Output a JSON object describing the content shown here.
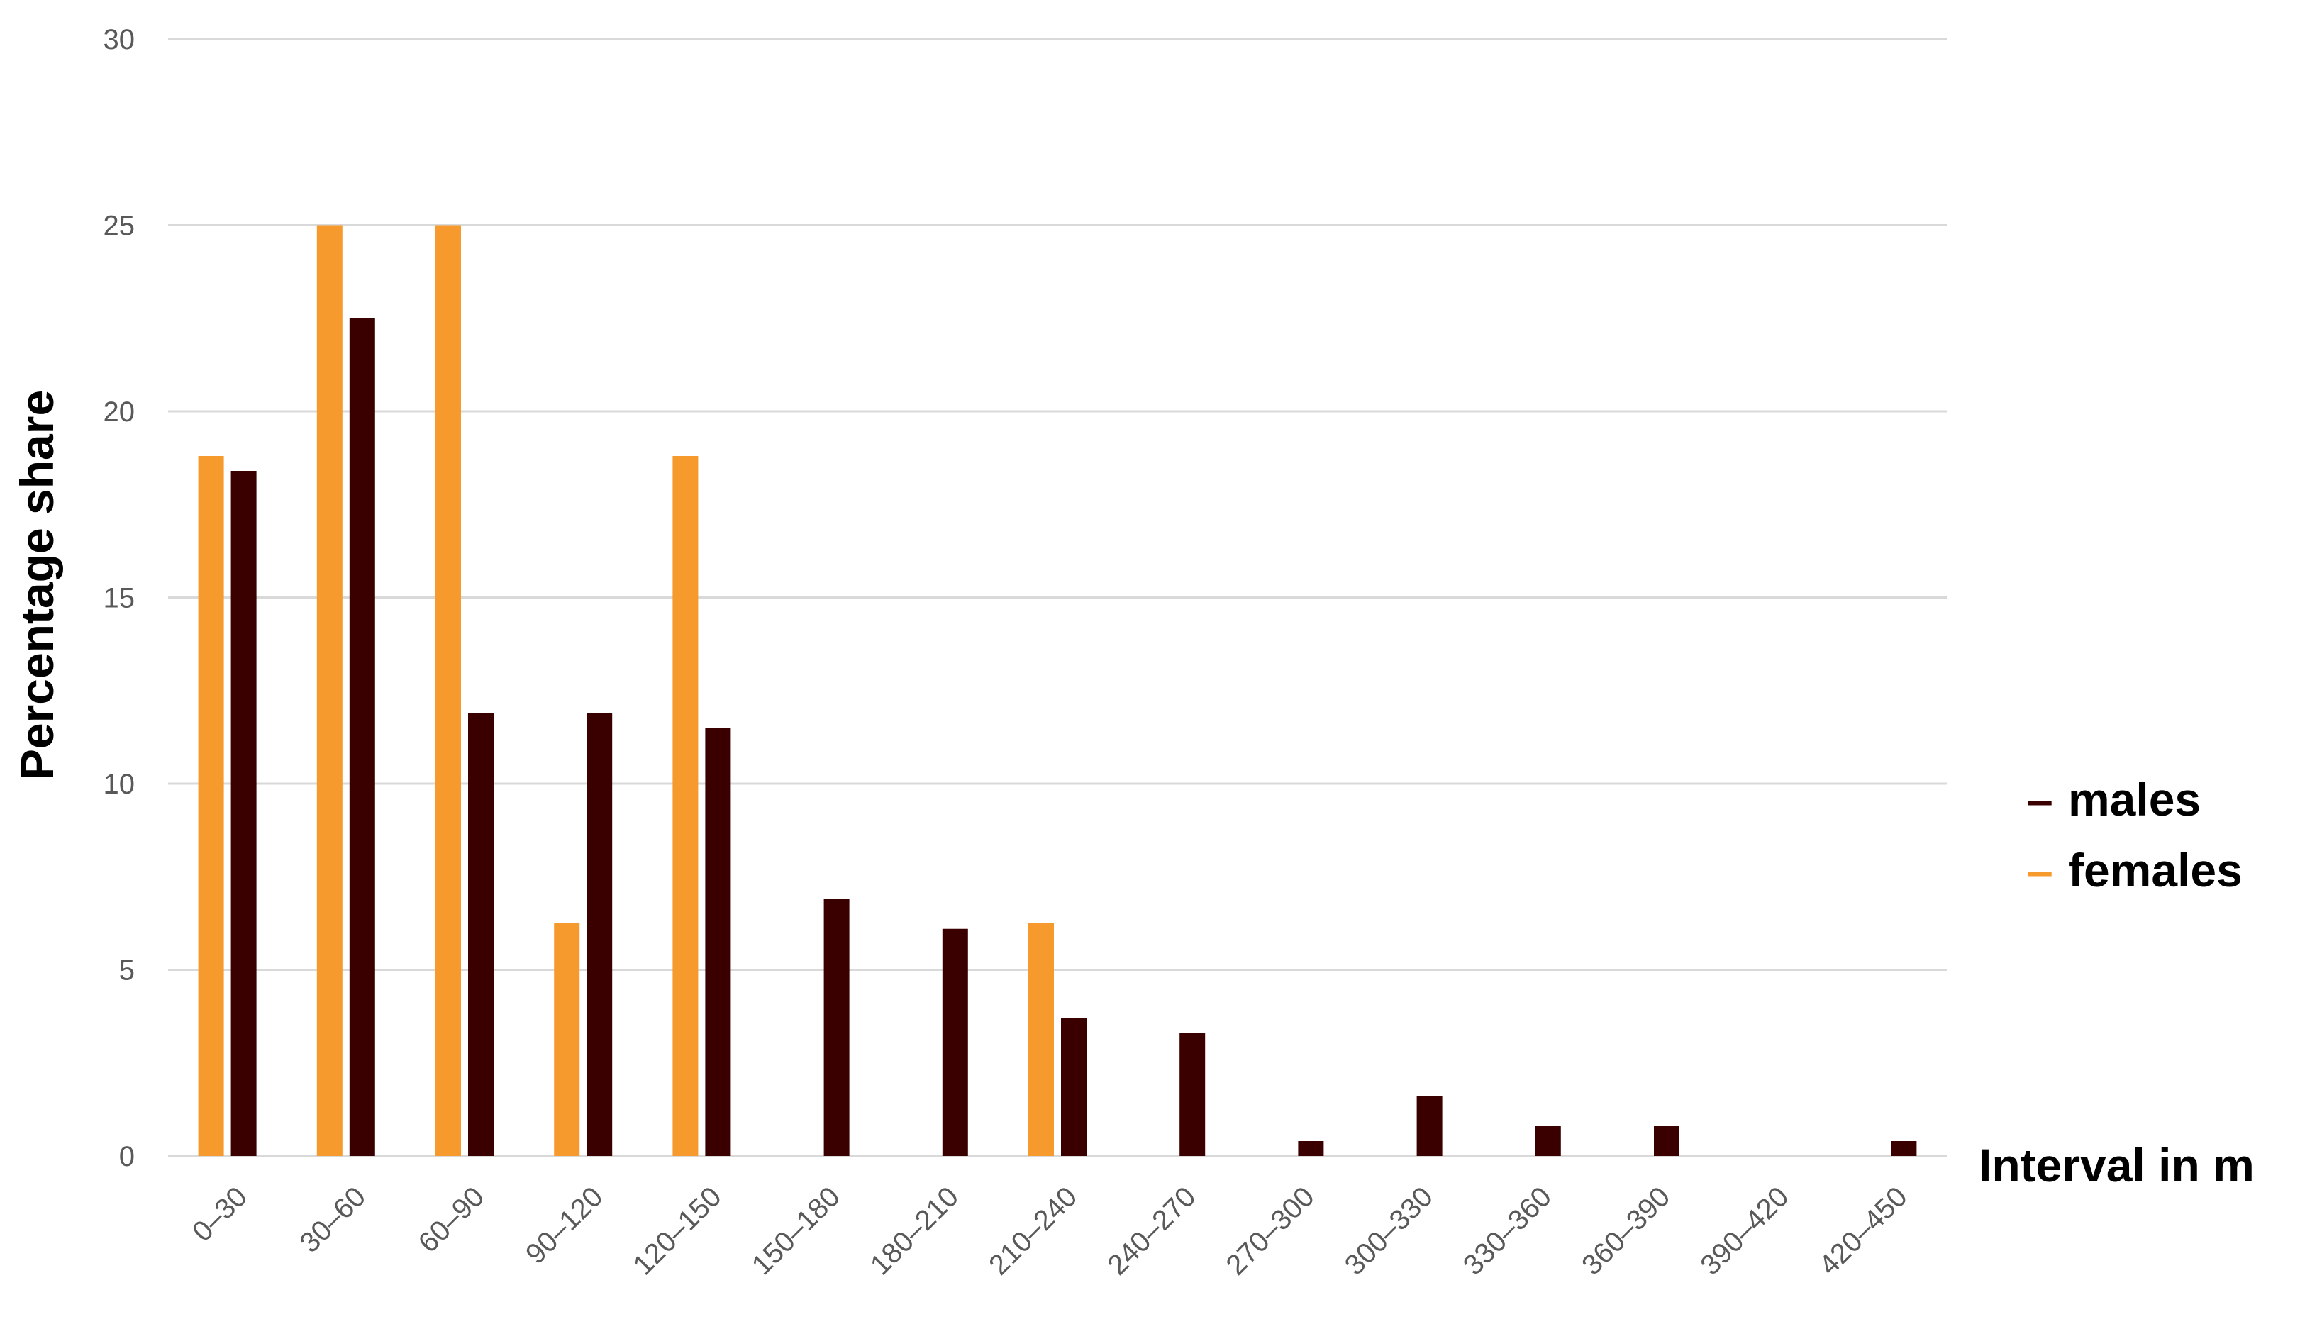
{
  "chart_data": {
    "type": "bar",
    "title": "",
    "ylabel": "Percentage share",
    "xlabel": "Interval in m",
    "ylim": [
      0,
      30
    ],
    "yticks": [
      "0",
      "5",
      "10",
      "15",
      "20",
      "25",
      "30"
    ],
    "grid": true,
    "legend_position": "right",
    "categories": [
      "0–30",
      "30–60",
      "60–90",
      "90–120",
      "120–150",
      "150–180",
      "180–210",
      "210–240",
      "240–270",
      "270–300",
      "300–330",
      "330–360",
      "360–390",
      "390–420",
      "420–450"
    ],
    "series": [
      {
        "name": "females",
        "color": "#f79a2d",
        "values": [
          18.8,
          25,
          25,
          6.25,
          18.8,
          0,
          0,
          6.25,
          0,
          0,
          0,
          0,
          0,
          0,
          0
        ]
      },
      {
        "name": "males",
        "color": "#3a0000",
        "values": [
          18.4,
          22.5,
          11.9,
          11.9,
          11.5,
          6.9,
          6.1,
          3.7,
          3.3,
          0.4,
          1.6,
          0.8,
          0.8,
          0,
          0.4
        ]
      }
    ],
    "legend": [
      {
        "name": "males",
        "color": "#3a0000",
        "marker": "–"
      },
      {
        "name": "females",
        "color": "#f79a2d",
        "marker": "–"
      }
    ]
  }
}
